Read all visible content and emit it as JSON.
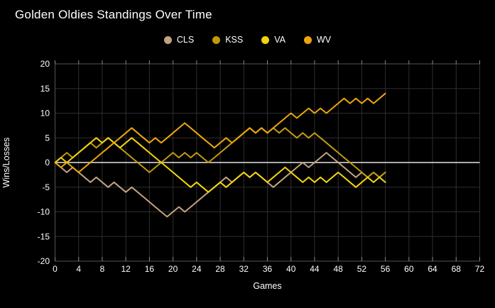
{
  "title": "Golden Oldies Standings Over Time",
  "xaxis_title": "Games",
  "yaxis_title": "Wins/Losses",
  "legend": [
    {
      "label": "CLS",
      "color": "#C3A281"
    },
    {
      "label": "KSS",
      "color": "#BF9A0C"
    },
    {
      "label": "VA",
      "color": "#F2D30F"
    },
    {
      "label": "WV",
      "color": "#ECA50E"
    }
  ],
  "colors": {
    "background": "#000000",
    "grid": "#2e2e2e",
    "zero_line": "#e6e6e6",
    "axis_line": "#555555",
    "tick": "#888888",
    "tick_label": "#ffffff",
    "title_text": "#ffffff"
  },
  "chart_data": {
    "type": "line",
    "title": "Golden Oldies Standings Over Time",
    "xlabel": "Games",
    "ylabel": "Wins/Losses",
    "xlim": [
      0,
      72
    ],
    "ylim": [
      -20,
      20
    ],
    "x_ticks": [
      0,
      4,
      8,
      12,
      16,
      20,
      24,
      28,
      32,
      36,
      40,
      44,
      48,
      52,
      56,
      60,
      64,
      68,
      72
    ],
    "y_ticks": [
      -20,
      -15,
      -10,
      -5,
      0,
      5,
      10,
      15,
      20
    ],
    "grid": true,
    "legend_position": "top-center",
    "x_start": 0,
    "x_step": 1,
    "series": [
      {
        "name": "CLS",
        "color": "#C3A281",
        "values": [
          0,
          -1,
          -2,
          -1,
          -2,
          -3,
          -4,
          -3,
          -4,
          -5,
          -4,
          -5,
          -6,
          -5,
          -6,
          -7,
          -8,
          -9,
          -10,
          -11,
          -10,
          -9,
          -10,
          -9,
          -8,
          -7,
          -6,
          -5,
          -4,
          -3,
          -4,
          -3,
          -2,
          -3,
          -2,
          -3,
          -4,
          -5,
          -4,
          -3,
          -2,
          -1,
          0,
          -1,
          0,
          1,
          2,
          1,
          0,
          -1,
          -2,
          -3,
          -2,
          -3,
          -2,
          -3,
          -2
        ]
      },
      {
        "name": "KSS",
        "color": "#BF9A0C",
        "values": [
          0,
          1,
          2,
          1,
          2,
          3,
          4,
          3,
          4,
          5,
          4,
          3,
          2,
          1,
          0,
          -1,
          -2,
          -1,
          0,
          1,
          2,
          1,
          2,
          1,
          2,
          1,
          0,
          1,
          2,
          3,
          4,
          5,
          6,
          7,
          6,
          7,
          6,
          7,
          6,
          7,
          6,
          5,
          6,
          5,
          6,
          5,
          4,
          3,
          2,
          1,
          0,
          -1,
          -2,
          -3,
          -2,
          -3,
          -2
        ]
      },
      {
        "name": "VA",
        "color": "#F2D30F",
        "values": [
          0,
          1,
          0,
          1,
          2,
          3,
          4,
          5,
          4,
          5,
          4,
          3,
          4,
          5,
          4,
          3,
          2,
          1,
          0,
          -1,
          -2,
          -3,
          -4,
          -5,
          -4,
          -5,
          -6,
          -5,
          -4,
          -5,
          -4,
          -3,
          -2,
          -3,
          -2,
          -3,
          -4,
          -3,
          -2,
          -1,
          -2,
          -3,
          -4,
          -3,
          -4,
          -3,
          -4,
          -3,
          -2,
          -3,
          -4,
          -5,
          -4,
          -3,
          -4,
          -3,
          -4
        ]
      },
      {
        "name": "WV",
        "color": "#ECA50E",
        "values": [
          0,
          -1,
          0,
          -1,
          -2,
          -1,
          0,
          1,
          2,
          3,
          4,
          5,
          6,
          7,
          6,
          5,
          4,
          5,
          4,
          5,
          6,
          7,
          8,
          7,
          6,
          5,
          4,
          3,
          4,
          5,
          4,
          5,
          6,
          7,
          6,
          7,
          6,
          7,
          8,
          9,
          10,
          9,
          10,
          11,
          10,
          11,
          10,
          11,
          12,
          13,
          12,
          13,
          12,
          13,
          12,
          13,
          14
        ]
      }
    ]
  }
}
